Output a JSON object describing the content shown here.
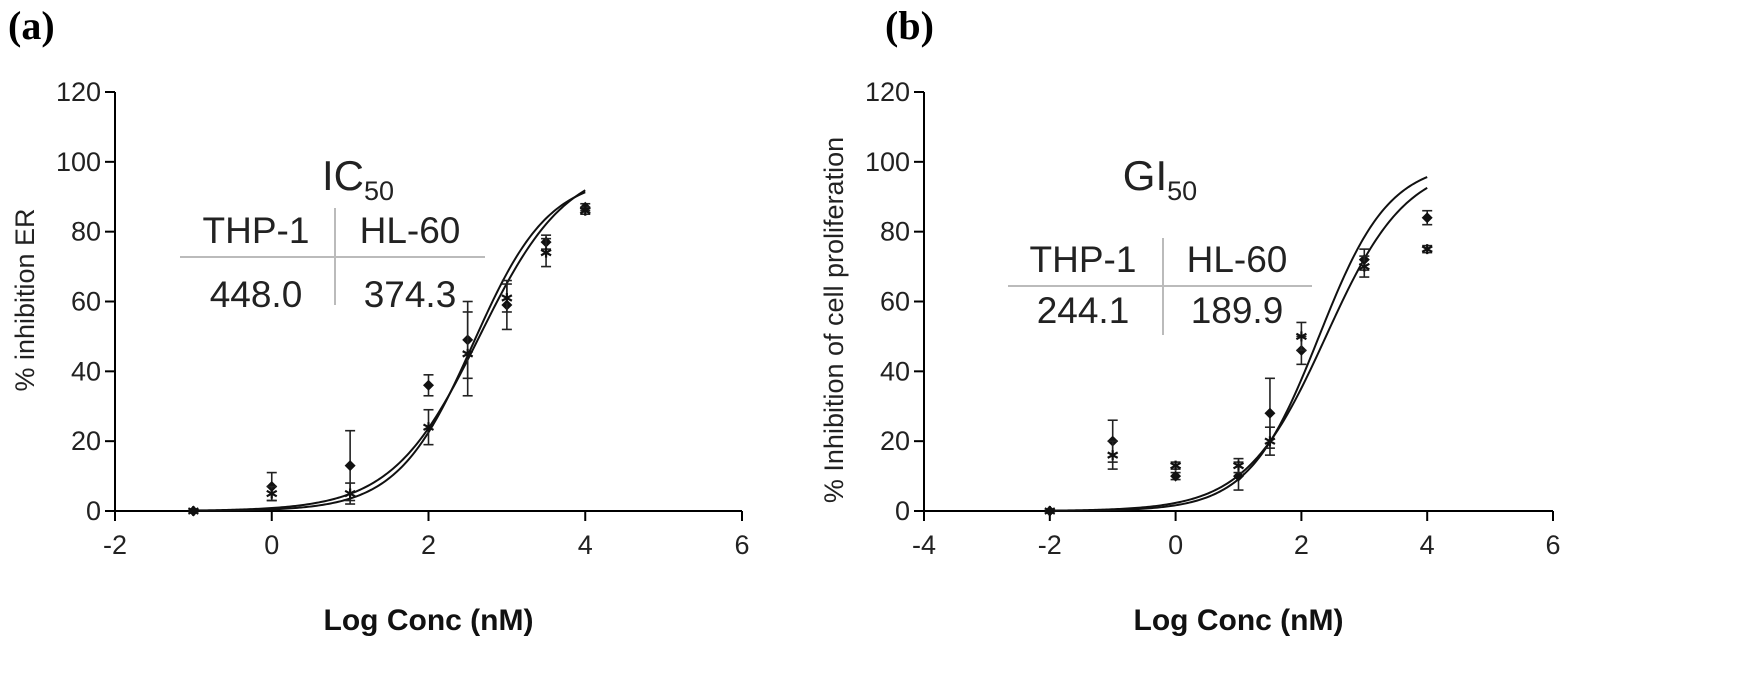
{
  "chart_data": [
    {
      "panel_label": "(a)",
      "type": "scatter",
      "xlabel": "Log Conc (nM)",
      "ylabel": "% inhibition ER",
      "xlim": [
        -2,
        6
      ],
      "ylim": [
        0,
        120
      ],
      "x_ticks": [
        "-2",
        "0",
        "2",
        "4",
        "6"
      ],
      "y_ticks": [
        "0",
        "20",
        "40",
        "60",
        "80",
        "100",
        "120"
      ],
      "grid": false,
      "inset": {
        "title_main": "IC",
        "title_sub": "50",
        "headers": [
          "THP-1",
          "HL-60"
        ],
        "values": [
          "448.0",
          "374.3"
        ]
      },
      "series": [
        {
          "marker": "diamond",
          "x": [
            -1,
            0,
            1,
            2,
            2.5,
            3,
            3.5,
            4
          ],
          "y": [
            0,
            7,
            13,
            36,
            49,
            59,
            77,
            87
          ],
          "err": [
            0,
            4,
            10,
            3,
            11,
            7,
            2,
            1
          ],
          "curve": {
            "bottom": 0,
            "top": 100,
            "logEC50": 2.65,
            "hill": 0.78
          }
        },
        {
          "marker": "asterisk",
          "x": [
            -1,
            0,
            1,
            2,
            2.5,
            3,
            3.5,
            4
          ],
          "y": [
            0,
            5,
            5,
            24,
            45,
            61,
            74,
            86
          ],
          "err": [
            0,
            2,
            3,
            5,
            12,
            4,
            4,
            1
          ],
          "curve": {
            "bottom": 0,
            "top": 96,
            "logEC50": 2.57,
            "hill": 0.9
          }
        }
      ]
    },
    {
      "panel_label": "(b)",
      "type": "scatter",
      "xlabel": "Log Conc (nM)",
      "ylabel": "% Inhibition of cell proliferation",
      "xlim": [
        -4,
        6
      ],
      "ylim": [
        0,
        120
      ],
      "x_ticks": [
        "-4",
        "-2",
        "0",
        "2",
        "4",
        "6"
      ],
      "y_ticks": [
        "0",
        "20",
        "40",
        "60",
        "80",
        "100",
        "120"
      ],
      "grid": false,
      "inset": {
        "title_main": "GI",
        "title_sub": "50",
        "headers": [
          "THP-1",
          "HL-60"
        ],
        "values": [
          "244.1",
          "189.9"
        ]
      },
      "series": [
        {
          "marker": "diamond",
          "x": [
            -2,
            -1,
            0,
            1,
            1.5,
            2,
            3,
            4
          ],
          "y": [
            0,
            20,
            10,
            10,
            28,
            46,
            72,
            84
          ],
          "err": [
            0,
            6,
            1,
            4,
            10,
            4,
            3,
            2
          ],
          "curve": {
            "bottom": 0,
            "top": 100,
            "logEC50": 2.39,
            "hill": 0.68
          }
        },
        {
          "marker": "asterisk",
          "x": [
            -2,
            -1,
            0,
            1,
            1.5,
            2,
            3,
            4
          ],
          "y": [
            0,
            16,
            13,
            13,
            20,
            50,
            70,
            75
          ],
          "err": [
            0,
            4,
            1,
            2,
            4,
            4,
            3,
            1
          ],
          "curve": {
            "bottom": 0,
            "top": 100,
            "logEC50": 2.28,
            "hill": 0.78
          }
        }
      ]
    }
  ]
}
